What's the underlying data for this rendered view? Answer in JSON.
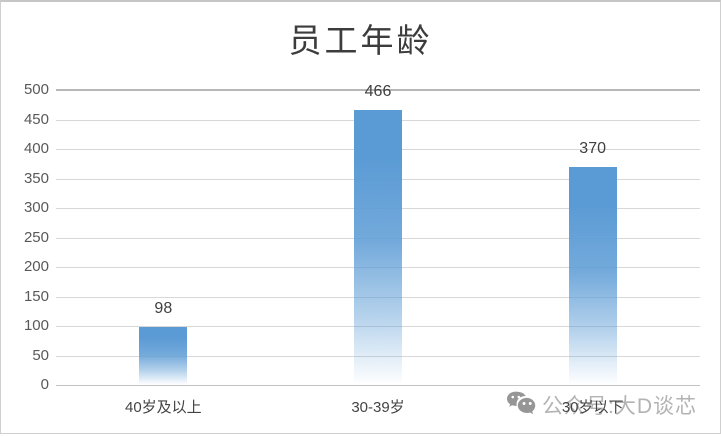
{
  "title": "员工年龄",
  "chart_data": {
    "type": "bar",
    "title": "员工年龄",
    "categories": [
      "40岁及以上",
      "30-39岁",
      "30岁以下"
    ],
    "values": [
      98,
      466,
      370
    ],
    "data_labels": [
      "98",
      "466",
      "370"
    ],
    "xlabel": "",
    "ylabel": "",
    "ylim": [
      0,
      500
    ],
    "yticks": [
      0,
      50,
      100,
      150,
      200,
      250,
      300,
      350,
      400,
      450,
      500
    ],
    "grid": true,
    "legend": "none",
    "bar_color": "#5b9bd5",
    "gridline_color": "#d8d8d8",
    "tick_label_color": "#595959",
    "data_label_color": "#3f3f3f"
  },
  "watermark": {
    "icon": "wechat-icon",
    "text": "公众号:大D谈芯",
    "color": "#b3b3b3"
  }
}
